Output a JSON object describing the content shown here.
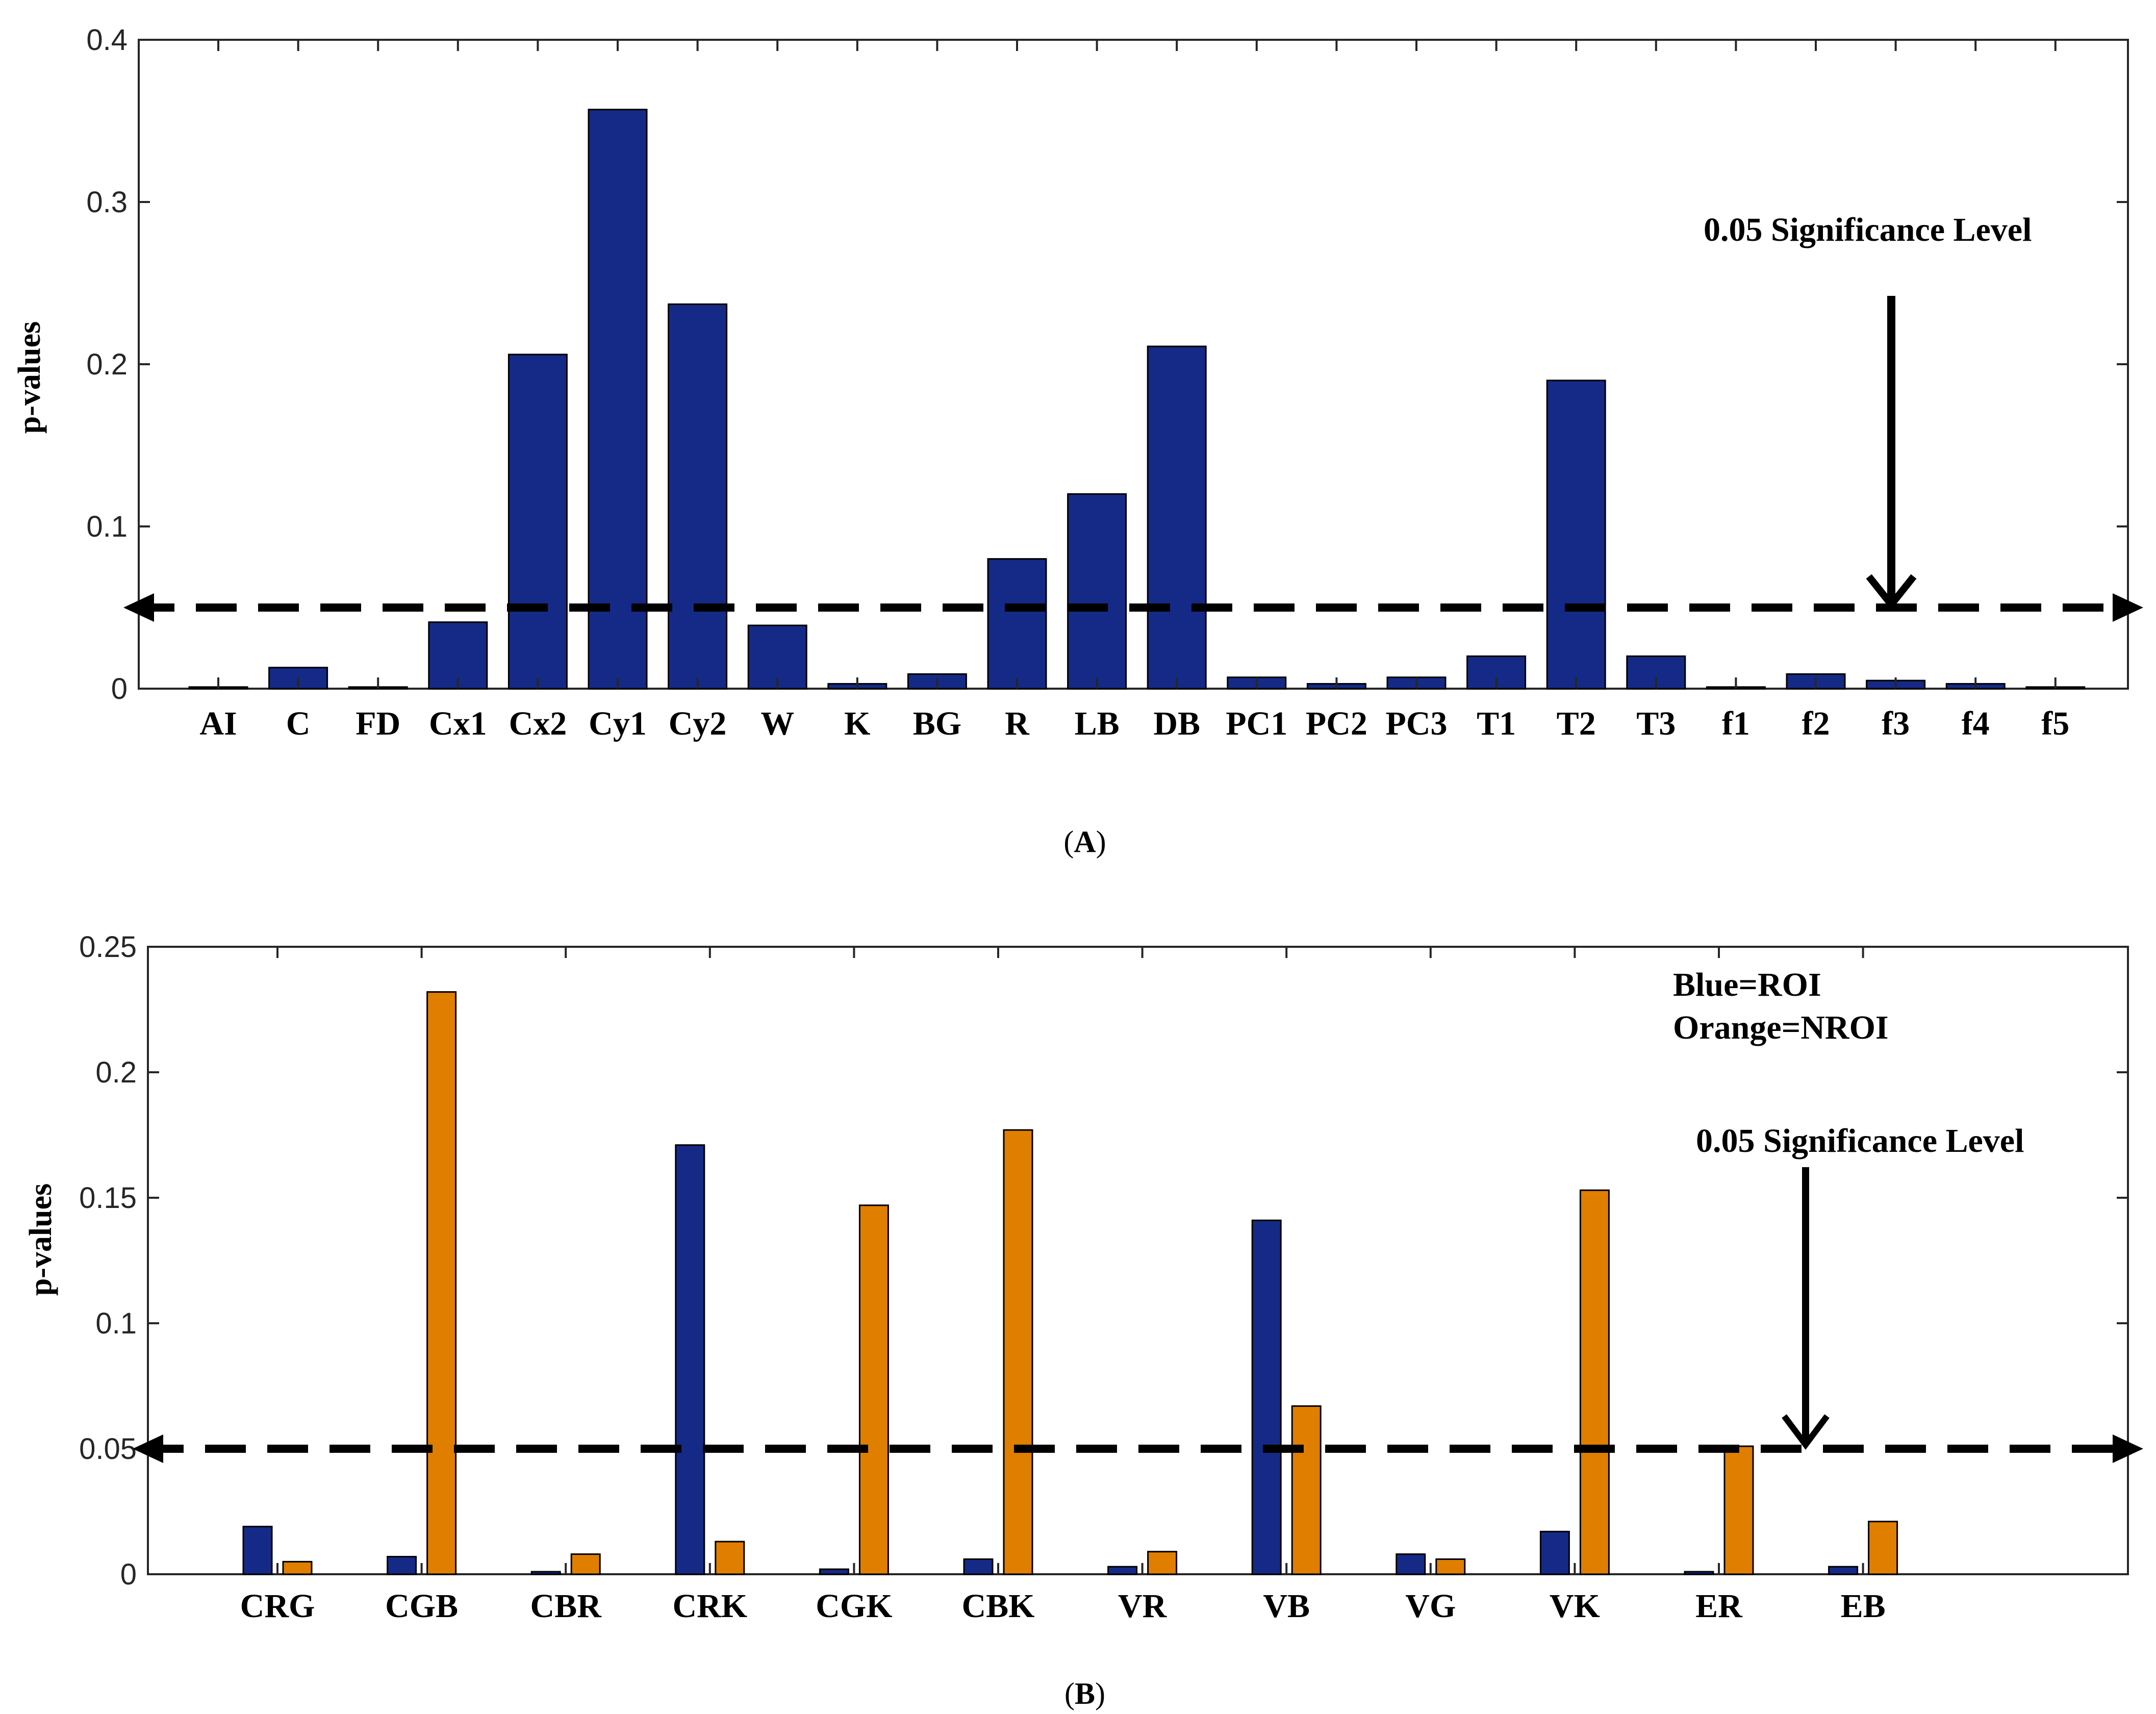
{
  "chart_data": [
    {
      "type": "bar",
      "panel_label": "A",
      "ylabel": "p-values",
      "ylim": [
        0,
        0.4
      ],
      "yticks": [
        "0",
        "0.1",
        "0.2",
        "0.3",
        "0.4"
      ],
      "grid": false,
      "categories": [
        "AI",
        "C",
        "FD",
        "Cx1",
        "Cx2",
        "Cy1",
        "Cy2",
        "W",
        "K",
        "BG",
        "R",
        "LB",
        "DB",
        "PC1",
        "PC2",
        "PC3",
        "T1",
        "T2",
        "T3",
        "f1",
        "f2",
        "f3",
        "f4",
        "f5"
      ],
      "series": [
        {
          "name": "p-values",
          "color": "#152a87",
          "values": [
            0.001,
            0.013,
            0.001,
            0.041,
            0.206,
            0.357,
            0.237,
            0.039,
            0.003,
            0.009,
            0.08,
            0.12,
            0.211,
            0.007,
            0.003,
            0.007,
            0.02,
            0.19,
            0.02,
            0.001,
            0.009,
            0.005,
            0.003,
            0.001
          ]
        }
      ],
      "threshold": 0.05,
      "annotation": "0.05 Significance Level",
      "annotation_arrow_category": "f3"
    },
    {
      "type": "bar",
      "panel_label": "B",
      "ylabel": "p-values",
      "ylim": [
        0,
        0.25
      ],
      "yticks": [
        "0",
        "0.05",
        "0.1",
        "0.15",
        "0.2",
        "0.25"
      ],
      "grid": false,
      "categories": [
        "CRG",
        "CGB",
        "CBR",
        "CRK",
        "CGK",
        "CBK",
        "VR",
        "VB",
        "VG",
        "VK",
        "ER",
        "EB"
      ],
      "series": [
        {
          "name": "ROI",
          "color": "#152a87",
          "values": [
            0.019,
            0.007,
            0.001,
            0.171,
            0.002,
            0.006,
            0.003,
            0.141,
            0.008,
            0.017,
            0.001,
            0.003
          ]
        },
        {
          "name": "NROI",
          "color": "#e07e00",
          "values": [
            0.005,
            0.232,
            0.008,
            0.013,
            0.147,
            0.177,
            0.009,
            0.067,
            0.006,
            0.153,
            0.051,
            0.021
          ]
        }
      ],
      "legend": [
        "Blue=ROI",
        "Orange=NROI"
      ],
      "threshold": 0.05,
      "annotation": "0.05 Significance Level",
      "annotation_arrow_category": "EB"
    }
  ]
}
